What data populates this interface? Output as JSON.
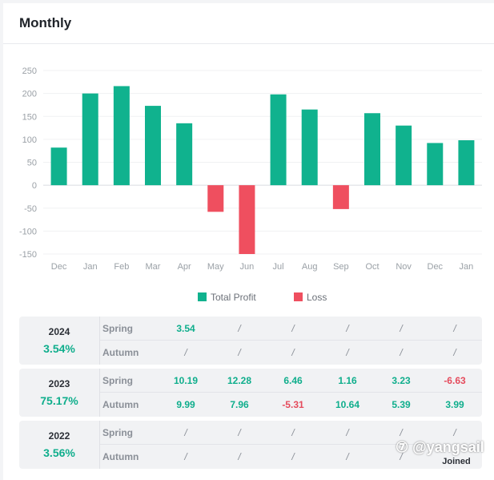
{
  "header": {
    "title": "Monthly"
  },
  "colors": {
    "profit": "#10b28e",
    "loss": "#ef4f5f",
    "positive_text": "#0fae8c",
    "negative_text": "#e54b5c"
  },
  "chart_data": {
    "type": "bar",
    "categories": [
      "Dec",
      "Jan",
      "Feb",
      "Mar",
      "Apr",
      "May",
      "Jun",
      "Jul",
      "Aug",
      "Sep",
      "Oct",
      "Nov",
      "Dec",
      "Jan"
    ],
    "series": [
      {
        "name": "Total Profit",
        "color": "#10b28e",
        "values": [
          82,
          200,
          216,
          173,
          135,
          null,
          null,
          198,
          165,
          null,
          157,
          130,
          92,
          98
        ]
      },
      {
        "name": "Loss",
        "color": "#ef4f5f",
        "values": [
          null,
          null,
          null,
          null,
          null,
          -58,
          -150,
          null,
          null,
          -52,
          null,
          null,
          null,
          null
        ]
      }
    ],
    "yticks": [
      250,
      200,
      150,
      100,
      50,
      0,
      -50,
      -100,
      -150
    ],
    "ylim": [
      -150,
      250
    ],
    "grid": true,
    "legend": "bottom-center"
  },
  "stats": [
    {
      "year": "2024",
      "percent": "3.54%",
      "rows": [
        {
          "season": "Spring",
          "values": [
            "3.54",
            "/",
            "/",
            "/",
            "/",
            "/"
          ]
        },
        {
          "season": "Autumn",
          "values": [
            "/",
            "/",
            "/",
            "/",
            "/",
            "/"
          ]
        }
      ]
    },
    {
      "year": "2023",
      "percent": "75.17%",
      "rows": [
        {
          "season": "Spring",
          "values": [
            "10.19",
            "12.28",
            "6.46",
            "1.16",
            "3.23",
            "-6.63"
          ]
        },
        {
          "season": "Autumn",
          "values": [
            "9.99",
            "7.96",
            "-5.31",
            "10.64",
            "5.39",
            "3.99"
          ]
        }
      ]
    },
    {
      "year": "2022",
      "percent": "3.56%",
      "rows": [
        {
          "season": "Spring",
          "values": [
            "/",
            "/",
            "/",
            "/",
            "/",
            "/"
          ]
        },
        {
          "season": "Autumn",
          "values": [
            "/",
            "/",
            "/",
            "/",
            "/",
            "Joined"
          ]
        }
      ]
    }
  ],
  "watermark": "⑦ @yangsail"
}
